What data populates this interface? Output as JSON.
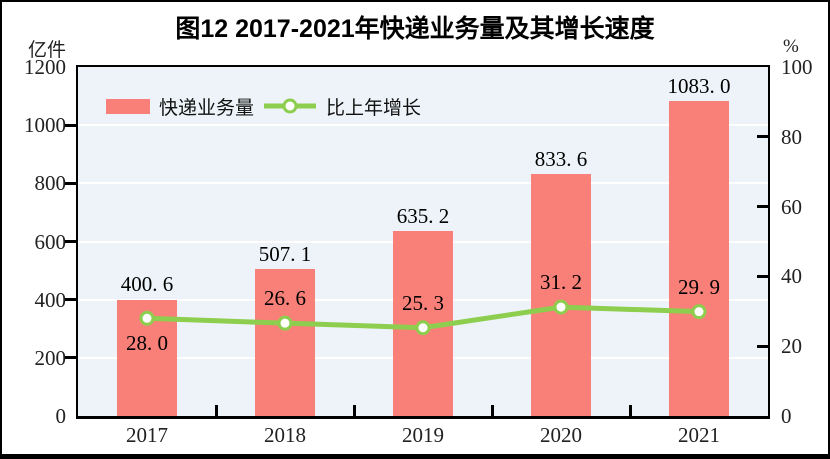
{
  "figure": {
    "title": "图12  2017-2021年快递业务量及其增长速度",
    "unit_left": "亿件",
    "unit_right": "%"
  },
  "legend": [
    {
      "label": "快递业务量",
      "type": "bar-swatch",
      "color": "#F98078"
    },
    {
      "label": "比上年增长",
      "type": "line-swatch",
      "color": "#8DCE4E"
    }
  ],
  "chart_data": {
    "type": "bar",
    "title": "图12  2017-2021年快递业务量及其增长速度",
    "categories": [
      "2017",
      "2018",
      "2019",
      "2020",
      "2021"
    ],
    "series": [
      {
        "name": "快递业务量",
        "type": "bar",
        "axis": "left",
        "values": [
          400.6,
          507.1,
          635.2,
          833.6,
          1083.0
        ],
        "display_labels": [
          "400. 6",
          "507. 1",
          "635. 2",
          "833. 6",
          "1083. 0"
        ],
        "color": "#F98078"
      },
      {
        "name": "比上年增长",
        "type": "line",
        "axis": "right",
        "values": [
          28.0,
          26.6,
          25.3,
          31.2,
          29.9
        ],
        "display_labels": [
          "28. 0",
          "26. 6",
          "25. 3",
          "31. 2",
          "29. 9"
        ],
        "label_positions": [
          "below",
          "above",
          "above",
          "above",
          "above"
        ],
        "color": "#8DCE4E",
        "marker": "circle-white-fill"
      }
    ],
    "y_left": {
      "label": "亿件",
      "min": 0,
      "max": 1200,
      "step": 200,
      "ticks": [
        0,
        200,
        400,
        600,
        800,
        1000,
        1200
      ]
    },
    "y_right": {
      "label": "%",
      "min": 0,
      "max": 100,
      "step": 20,
      "ticks": [
        0,
        20,
        40,
        60,
        80,
        100
      ]
    },
    "grid": "horizontal-white-lines-at-left-axis-steps",
    "plot_bg": "#EDF3F8",
    "legend_position": "top-left-inside"
  }
}
